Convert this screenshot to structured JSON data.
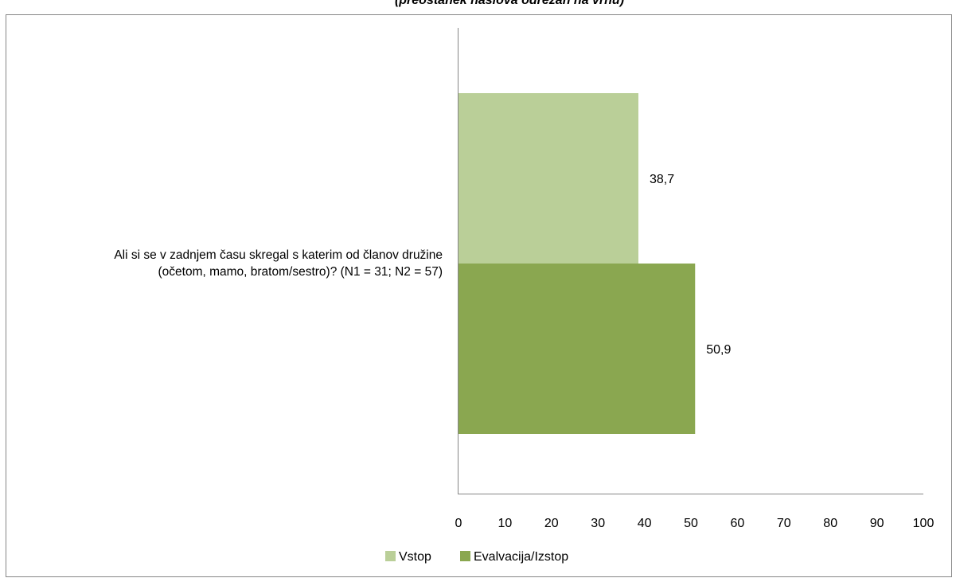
{
  "chart_data": {
    "type": "bar",
    "orientation": "horizontal",
    "title": "(preostanek naslova odrezan na vrhu)",
    "categories": [
      "Ali si se v zadnjem času skregal s katerim od članov družine (očetom, mamo, bratom/sestro)? (N1 = 31; N2 = 57)"
    ],
    "category_lines": [
      "Ali si se v zadnjem času skregal s katerim od članov družine",
      "(očetom, mamo, bratom/sestro)? (N1 = 31; N2 = 57)"
    ],
    "series": [
      {
        "name": "Vstop",
        "values": [
          38.7
        ],
        "labels": [
          "38,7"
        ],
        "color": "#bacf98"
      },
      {
        "name": "Evalvacija/Izstop",
        "values": [
          50.9
        ],
        "labels": [
          "50,9"
        ],
        "color": "#8aa750"
      }
    ],
    "xlim": [
      0,
      100
    ],
    "xticks": [
      0,
      10,
      20,
      30,
      40,
      50,
      60,
      70,
      80,
      90,
      100
    ],
    "xticklabels": [
      "0",
      "10",
      "20",
      "30",
      "40",
      "50",
      "60",
      "70",
      "80",
      "90",
      "100"
    ],
    "xlabel": "",
    "ylabel": "",
    "grid": false,
    "legend_position": "bottom"
  }
}
